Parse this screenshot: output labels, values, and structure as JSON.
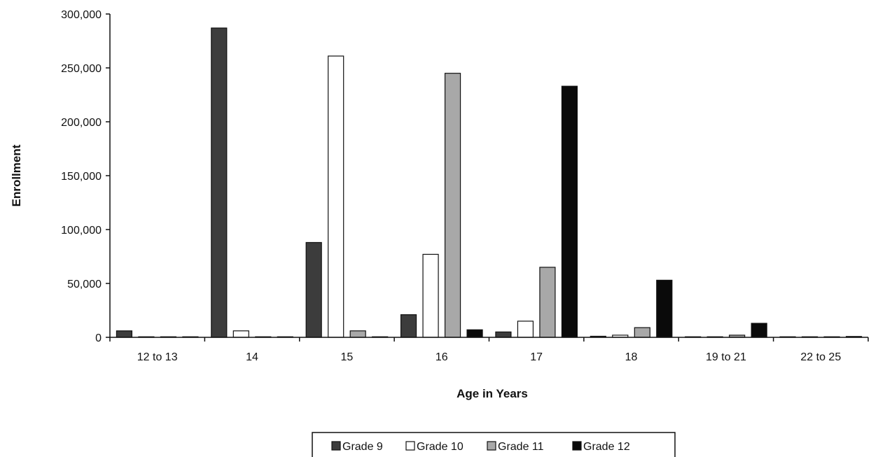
{
  "chart_data": {
    "type": "bar",
    "title": "",
    "xlabel": "Age in Years",
    "ylabel": "Enrollment",
    "ylim": [
      0,
      300000
    ],
    "yticks": [
      0,
      50000,
      100000,
      150000,
      200000,
      250000,
      300000
    ],
    "ytick_labels": [
      "0",
      "50,000",
      "100,000",
      "150,000",
      "200,000",
      "250,000",
      "300,000"
    ],
    "categories": [
      "12 to 13",
      "14",
      "15",
      "16",
      "17",
      "18",
      "19 to 21",
      "22 to 25"
    ],
    "series": [
      {
        "name": "Grade 9",
        "color": "#3c3c3c",
        "values": [
          6000,
          287000,
          88000,
          21000,
          5000,
          1000,
          300,
          100
        ]
      },
      {
        "name": "Grade 10",
        "color": "#ffffff",
        "values": [
          500,
          6000,
          261000,
          77000,
          15000,
          2000,
          500,
          200
        ]
      },
      {
        "name": "Grade 11",
        "color": "#a8a8a8",
        "values": [
          200,
          500,
          6000,
          245000,
          65000,
          9000,
          2000,
          400
        ]
      },
      {
        "name": "Grade 12",
        "color": "#0a0a0a",
        "values": [
          100,
          200,
          500,
          7000,
          233000,
          53000,
          13000,
          800
        ]
      }
    ],
    "legend_position": "bottom-center",
    "grid": false
  }
}
